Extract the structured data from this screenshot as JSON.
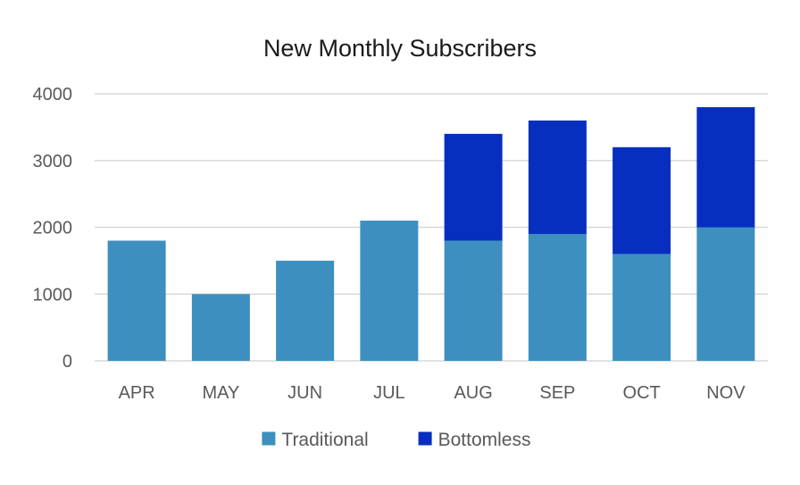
{
  "chart_data": {
    "type": "bar",
    "stacked": true,
    "title": "New Monthly Subscribers",
    "xlabel": "",
    "ylabel": "",
    "categories": [
      "APR",
      "MAY",
      "JUN",
      "JUL",
      "AUG",
      "SEP",
      "OCT",
      "NOV"
    ],
    "series": [
      {
        "name": "Traditional",
        "color": "#3d8fbf",
        "values": [
          1800,
          1000,
          1500,
          2100,
          1800,
          1900,
          1600,
          2000
        ]
      },
      {
        "name": "Bottomless",
        "color": "#062fbf",
        "values": [
          0,
          0,
          0,
          0,
          1600,
          1700,
          1600,
          1800
        ]
      }
    ],
    "ylim": [
      0,
      4000
    ],
    "yticks": [
      "0",
      "1000",
      "2000",
      "3000",
      "4000"
    ],
    "ytick_values": [
      0,
      1000,
      2000,
      3000,
      4000
    ],
    "grid": true,
    "legend_position": "bottom"
  }
}
